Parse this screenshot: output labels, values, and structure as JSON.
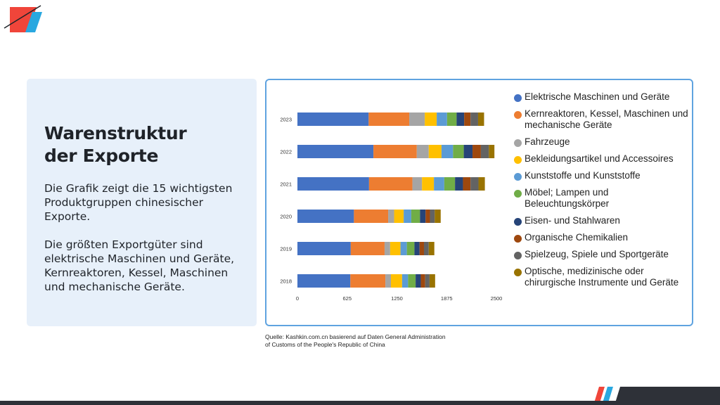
{
  "colors": {
    "accent_red": "#f0453a",
    "accent_blue": "#29a8e0",
    "panel_border": "#5fa3e0",
    "panel_bg": "#e7f0fa",
    "dark": "#2e3138"
  },
  "info": {
    "title_line1": "Warenstruktur",
    "title_line2": "der Exporte",
    "paragraph1": "Die Grafik zeigt die 15 wichtigsten Produktgruppen chinesischer Exporte.",
    "paragraph2": "Die größten Exportgüter sind elektrische Maschinen und Geräte, Kernreaktoren, Kessel, Maschinen und mechanische Geräte."
  },
  "source": {
    "line1": "Quelle: Kashkin.com.cn basierend auf Daten General Administration",
    "line2": "of Customs of the People's Republic of China"
  },
  "chart_data": {
    "type": "bar",
    "orientation": "horizontal",
    "stacked": true,
    "title": "",
    "categories": [
      "2023",
      "2022",
      "2021",
      "2020",
      "2019",
      "2018"
    ],
    "xlim": [
      0,
      2500
    ],
    "xticks": [
      "0",
      "625",
      "1250",
      "1875",
      "2500"
    ],
    "grid": false,
    "legend_position": "right",
    "series": [
      {
        "name": "Elektrische Maschinen und Geräte",
        "color": "#4472c4",
        "values": [
          895,
          955,
          900,
          710,
          670,
          665
        ]
      },
      {
        "name": "Kernreaktoren, Kessel, Maschinen und mechanische Geräte",
        "color": "#ed7d31",
        "values": [
          510,
          545,
          545,
          430,
          425,
          440
        ]
      },
      {
        "name": "Fahrzeuge",
        "color": "#a5a5a5",
        "values": [
          195,
          150,
          120,
          75,
          70,
          70
        ]
      },
      {
        "name": "Bekleidungsartikel und Accessoires",
        "color": "#ffc000",
        "values": [
          150,
          160,
          150,
          120,
          130,
          140
        ]
      },
      {
        "name": "Kunststoffe und Kunststoffe",
        "color": "#5b9bd5",
        "values": [
          130,
          145,
          130,
          95,
          80,
          75
        ]
      },
      {
        "name": "Möbel; Lampen und Beleuchtungskörper",
        "color": "#70ad47",
        "values": [
          120,
          135,
          135,
          110,
          95,
          95
        ]
      },
      {
        "name": "Eisen- und Stahlwaren",
        "color": "#264478",
        "values": [
          95,
          110,
          100,
          70,
          65,
          65
        ]
      },
      {
        "name": "Organische Chemikalien",
        "color": "#9e480e",
        "values": [
          80,
          105,
          95,
          55,
          55,
          55
        ]
      },
      {
        "name": "Spielzeug, Spiele und Sportgeräte",
        "color": "#636363",
        "values": [
          95,
          100,
          100,
          60,
          60,
          55
        ]
      },
      {
        "name": "Optische, medizinische oder chirurgische Instrumente und Geräte",
        "color": "#997300",
        "values": [
          75,
          70,
          80,
          75,
          70,
          70
        ]
      }
    ]
  }
}
